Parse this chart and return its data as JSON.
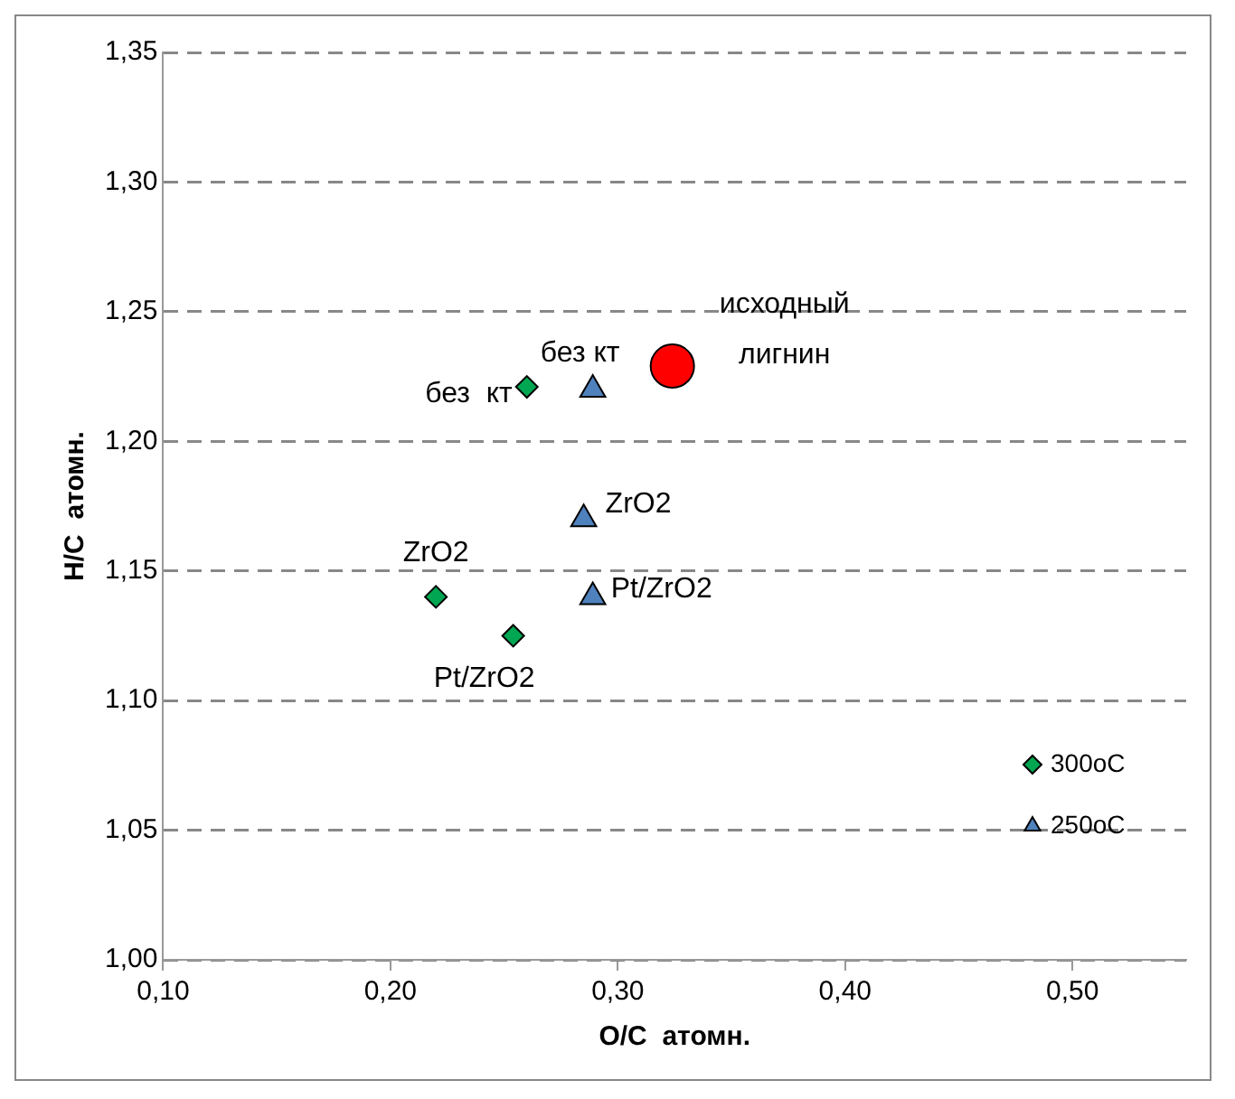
{
  "chart_data": {
    "type": "scatter",
    "xlabel": "O/C  атомн.",
    "ylabel": "H/C  атомн.",
    "xlim": [
      0.1,
      0.55
    ],
    "ylim": [
      1.0,
      1.35
    ],
    "xticks": [
      {
        "value": 0.1,
        "label": "0,10"
      },
      {
        "value": 0.2,
        "label": "0,20"
      },
      {
        "value": 0.3,
        "label": "0,30"
      },
      {
        "value": 0.4,
        "label": "0,40"
      },
      {
        "value": 0.5,
        "label": "0,50"
      }
    ],
    "yticks": [
      {
        "value": 1.0,
        "label": "1,00"
      },
      {
        "value": 1.05,
        "label": "1,05"
      },
      {
        "value": 1.1,
        "label": "1,10"
      },
      {
        "value": 1.15,
        "label": "1,15"
      },
      {
        "value": 1.2,
        "label": "1,20"
      },
      {
        "value": 1.25,
        "label": "1,25"
      },
      {
        "value": 1.3,
        "label": "1,30"
      },
      {
        "value": 1.35,
        "label": "1,35"
      }
    ],
    "grid": "y",
    "legend": "bottom right",
    "series": [
      {
        "name": "300oC",
        "color": "#00a651",
        "marker": "diamond",
        "x": [
          0.26,
          0.22,
          0.254
        ],
        "values": [
          1.221,
          1.14,
          1.125
        ]
      },
      {
        "name": "250oC",
        "color": "#4f81bd",
        "marker": "triangle",
        "x": [
          0.289,
          0.285,
          0.289
        ],
        "values": [
          1.22,
          1.17,
          1.14
        ]
      },
      {
        "color": "#ff0000",
        "marker": "circle",
        "x": [
          0.324
        ],
        "values": [
          1.229
        ]
      }
    ],
    "annotations": [
      {
        "text": "без  кт",
        "x": 0.26,
        "y": 1.221
      },
      {
        "text": "без кт",
        "x": 0.289,
        "y": 1.22
      },
      {
        "text": "исходный лигнин",
        "x": 0.324,
        "y": 1.229
      },
      {
        "text": "ZrO2",
        "x": 0.285,
        "y": 1.17
      },
      {
        "text": "ZrO2",
        "x": 0.22,
        "y": 1.14
      },
      {
        "text": "Pt/ZrO2",
        "x": 0.289,
        "y": 1.14
      },
      {
        "text": "Pt/ZrO2",
        "x": 0.254,
        "y": 1.125
      }
    ]
  }
}
